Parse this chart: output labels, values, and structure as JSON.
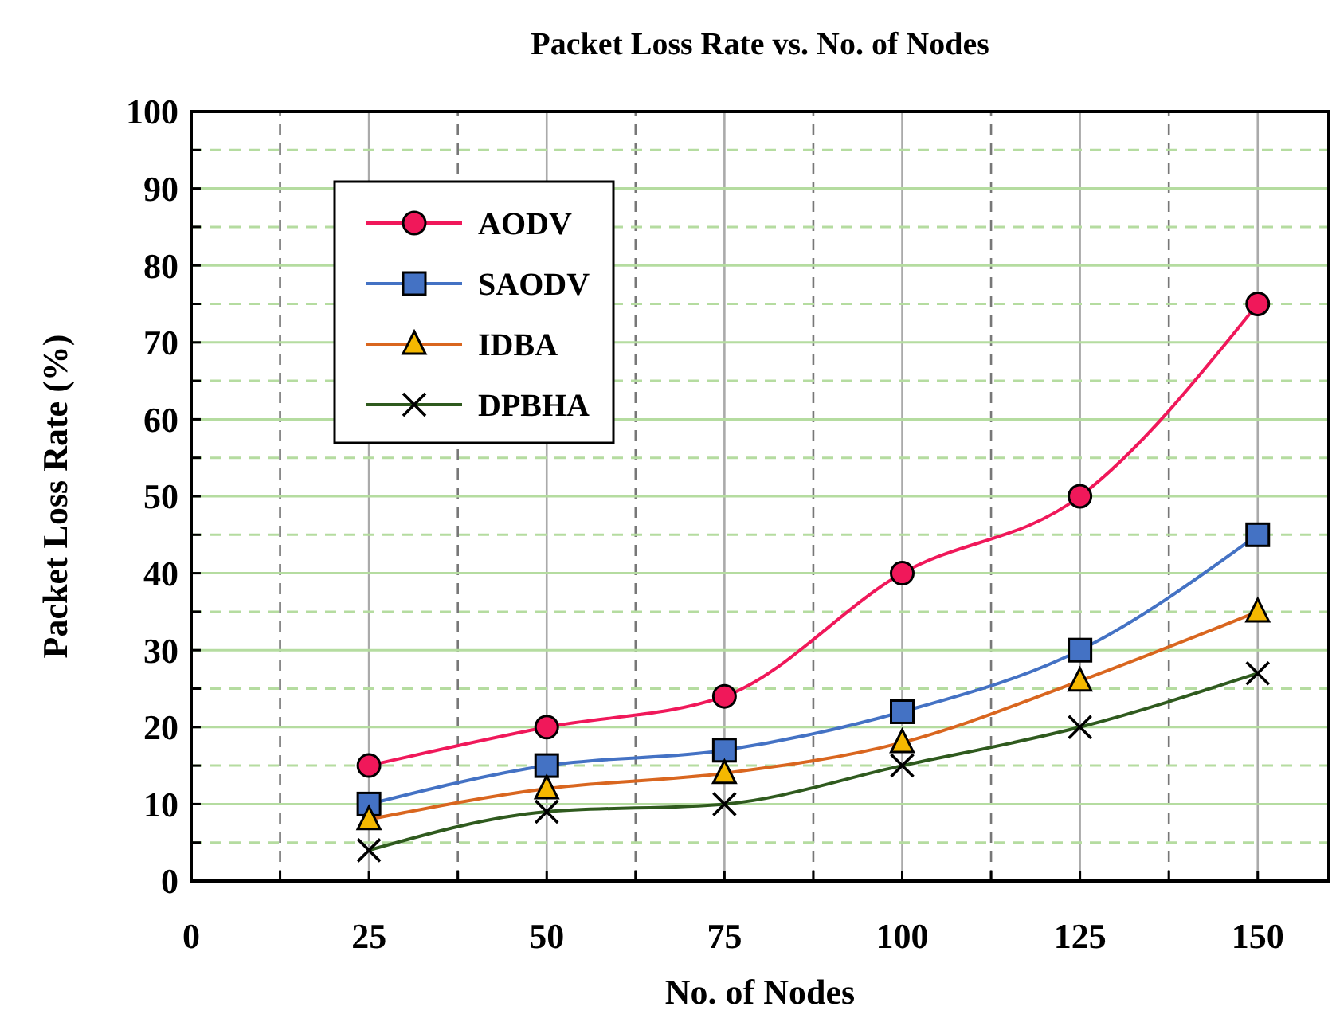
{
  "chart_data": {
    "type": "line",
    "title": "Packet Loss Rate vs. No. of Nodes",
    "xlabel": "No. of Nodes",
    "ylabel": "Packet Loss Rate (%)",
    "x": [
      25,
      50,
      75,
      100,
      125,
      150
    ],
    "series": [
      {
        "name": "AODV",
        "color": "#f0185a",
        "marker": "circle",
        "values": [
          15,
          20,
          24,
          40,
          50,
          75
        ]
      },
      {
        "name": "SAODV",
        "color": "#4472c4",
        "marker": "square",
        "values": [
          10,
          15,
          17,
          22,
          30,
          45
        ]
      },
      {
        "name": "IDBA",
        "color": "#d9661f",
        "marker": "triangle",
        "values": [
          8,
          12,
          14,
          18,
          26,
          35
        ]
      },
      {
        "name": "DPBHA",
        "color": "#2f5a1e",
        "marker": "cross",
        "values": [
          4,
          9,
          10,
          15,
          20,
          27
        ]
      }
    ],
    "xlim": [
      0,
      160
    ],
    "xticks": [
      0,
      {
        "value": 12.5,
        "label": null
      },
      25,
      {
        "value": 37.5,
        "label": null
      },
      50,
      {
        "value": 62.5,
        "label": null
      },
      75,
      {
        "value": 87.5,
        "label": null
      },
      100,
      {
        "value": 112.5,
        "label": null
      },
      125,
      {
        "value": 137.5,
        "label": null
      },
      150
    ],
    "ylim": [
      0,
      100
    ],
    "yticks": [
      0,
      {
        "value": 5,
        "label": null
      },
      10,
      {
        "value": 15,
        "label": null
      },
      20,
      {
        "value": 25,
        "label": null
      },
      30,
      {
        "value": 35,
        "label": null
      },
      40,
      {
        "value": 45,
        "label": null
      },
      50,
      {
        "value": 55,
        "label": null
      },
      60,
      {
        "value": 65,
        "label": null
      },
      70,
      {
        "value": 75,
        "label": null
      },
      80,
      {
        "value": 85,
        "label": null
      },
      90,
      {
        "value": 95,
        "label": null
      },
      100
    ],
    "grid": true,
    "legend": "top left",
    "line_style": "solid"
  }
}
